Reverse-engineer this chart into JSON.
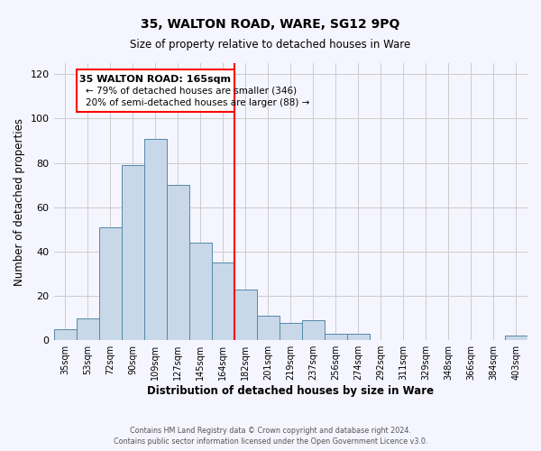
{
  "title": "35, WALTON ROAD, WARE, SG12 9PQ",
  "subtitle": "Size of property relative to detached houses in Ware",
  "xlabel": "Distribution of detached houses by size in Ware",
  "ylabel": "Number of detached properties",
  "categories": [
    "35sqm",
    "53sqm",
    "72sqm",
    "90sqm",
    "109sqm",
    "127sqm",
    "145sqm",
    "164sqm",
    "182sqm",
    "201sqm",
    "219sqm",
    "237sqm",
    "256sqm",
    "274sqm",
    "292sqm",
    "311sqm",
    "329sqm",
    "348sqm",
    "366sqm",
    "384sqm",
    "403sqm"
  ],
  "values": [
    5,
    10,
    51,
    79,
    91,
    70,
    44,
    35,
    23,
    11,
    8,
    9,
    3,
    3,
    0,
    0,
    0,
    0,
    0,
    0,
    2
  ],
  "bar_color": "#c8d8e8",
  "bar_edge_color": "#5588aa",
  "property_line_x": 7.5,
  "property_line_label": "35 WALTON ROAD: 165sqm",
  "annotation_line1": "← 79% of detached houses are smaller (346)",
  "annotation_line2": "20% of semi-detached houses are larger (88) →",
  "vline_color": "red",
  "ylim": [
    0,
    125
  ],
  "yticks": [
    0,
    20,
    40,
    60,
    80,
    100,
    120
  ],
  "grid_color": "#cccccc",
  "background_color": "#f5f5ff",
  "footnote1": "Contains HM Land Registry data © Crown copyright and database right 2024.",
  "footnote2": "Contains public sector information licensed under the Open Government Licence v3.0."
}
